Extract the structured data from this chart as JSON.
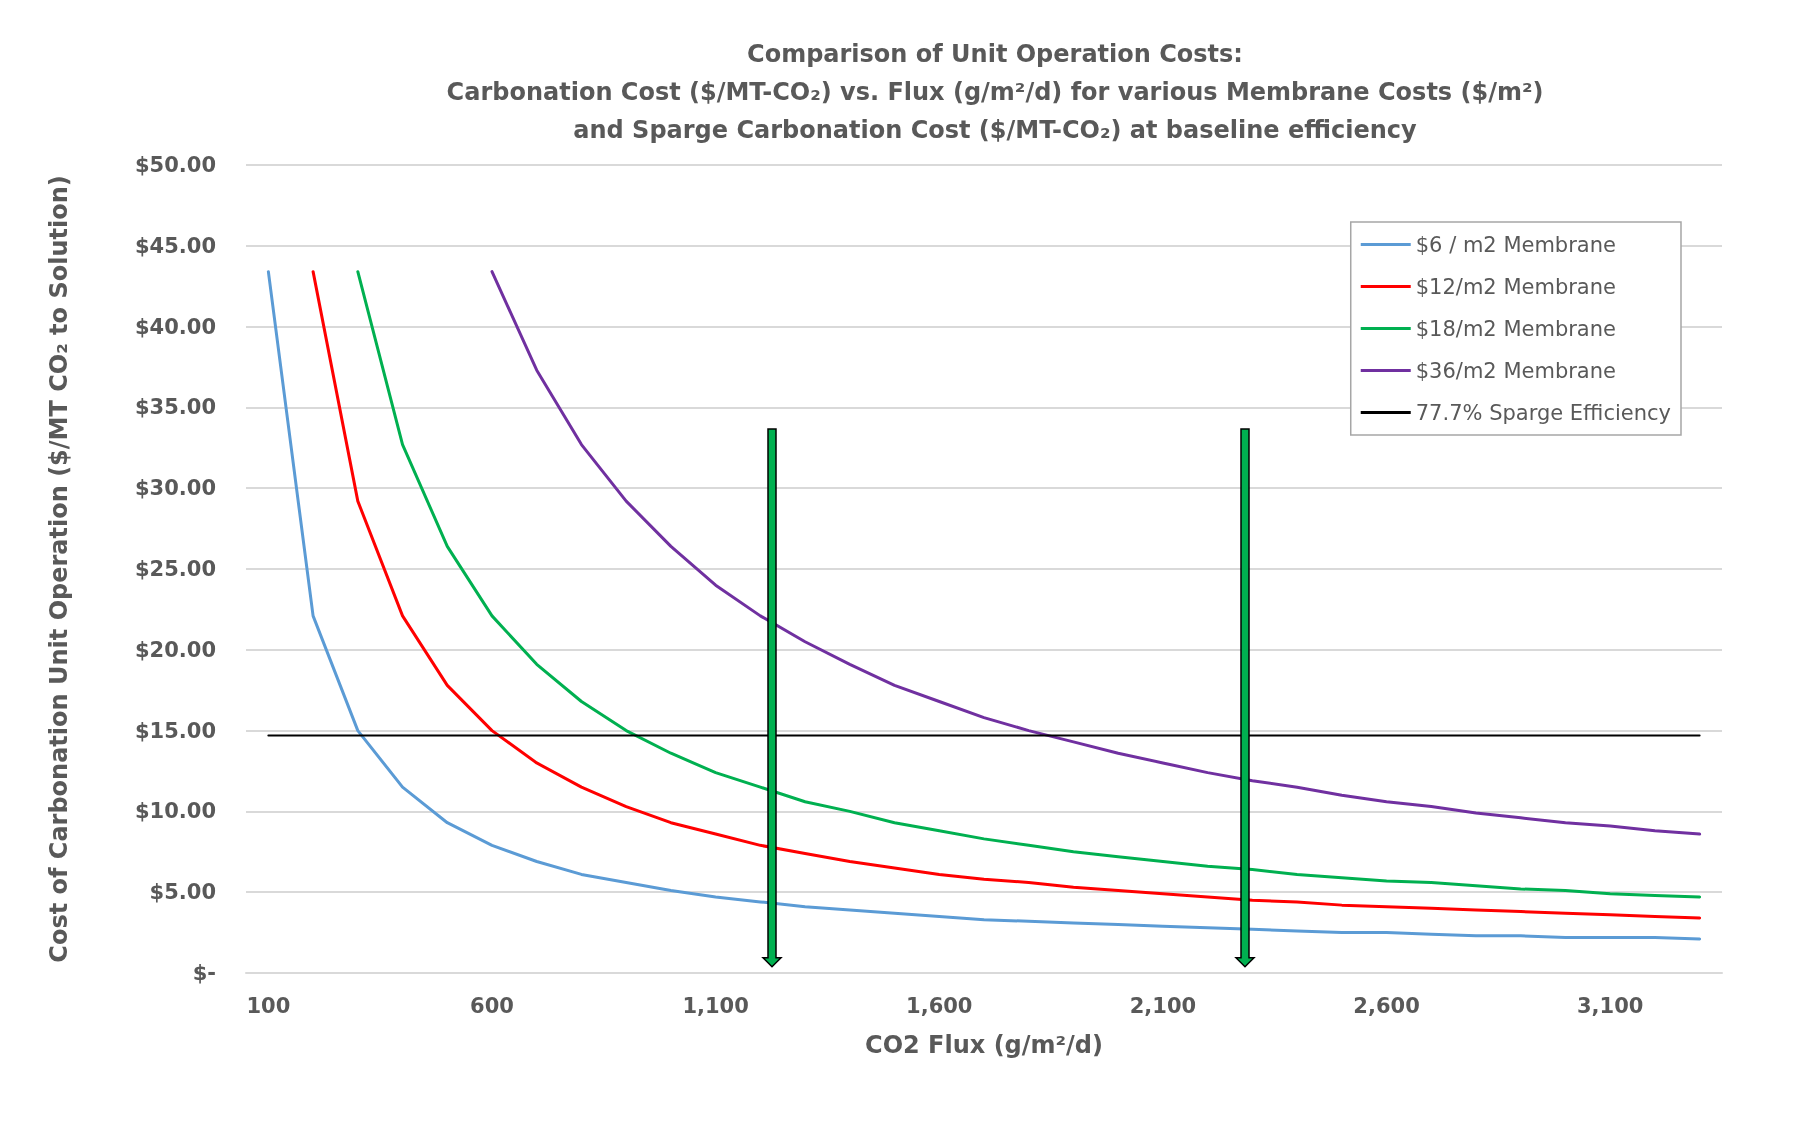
{
  "chart_data": {
    "type": "line",
    "title": "Comparison of Unit Operation Costs:\nCarbonation Cost ($/MT-CO₂) vs. Flux (g/m²/d) for various Membrane Costs ($/m²)\nand Sparge Carbonation Cost ($/MT-CO₂) at baseline efficiency",
    "xlabel": "CO2 Flux (g/m²/d)",
    "ylabel": "Cost of Carbonation Unit Operation ($/MT CO₂ to Solution)",
    "categories": [
      "100",
      null,
      null,
      null,
      null,
      "600",
      null,
      null,
      null,
      null,
      "1,100",
      null,
      null,
      null,
      null,
      "1,600",
      null,
      null,
      null,
      null,
      "2,100",
      null,
      null,
      null,
      null,
      "2,600",
      null,
      null,
      null,
      null,
      "3,100",
      null,
      null
    ],
    "series": [
      {
        "name": "$6 / m2 Membrane",
        "color": "#5b9bd5",
        "values": [
          43.4,
          22.1,
          15.0,
          11.5,
          9.3,
          7.9,
          6.9,
          6.1,
          5.6,
          5.1,
          4.7,
          4.4,
          4.1,
          3.9,
          3.7,
          3.5,
          3.3,
          3.2,
          3.1,
          3.0,
          2.9,
          2.8,
          2.7,
          2.6,
          2.5,
          2.5,
          2.4,
          2.3,
          2.3,
          2.2,
          2.2,
          2.2,
          2.1
        ]
      },
      {
        "name": "$12/m2 Membrane",
        "color": "#ff0000",
        "values": [
          null,
          43.4,
          29.2,
          22.1,
          17.8,
          15.0,
          13.0,
          11.5,
          10.3,
          9.3,
          8.6,
          7.9,
          7.4,
          6.9,
          6.5,
          6.1,
          5.8,
          5.6,
          5.3,
          5.1,
          4.9,
          4.7,
          4.5,
          4.4,
          4.2,
          4.1,
          4.0,
          3.9,
          3.8,
          3.7,
          3.6,
          3.5,
          3.4
        ]
      },
      {
        "name": "$18/m2 Membrane",
        "color": "#00b050",
        "values": [
          null,
          null,
          43.4,
          32.7,
          26.4,
          22.1,
          19.1,
          16.8,
          15.0,
          13.6,
          12.4,
          11.5,
          10.6,
          10.0,
          9.3,
          8.8,
          8.3,
          7.9,
          7.5,
          7.2,
          6.9,
          6.6,
          6.4,
          6.1,
          5.9,
          5.7,
          5.6,
          5.4,
          5.2,
          5.1,
          4.9,
          4.8,
          4.7
        ]
      },
      {
        "name": "$36/m2 Membrane",
        "color": "#7030a0",
        "values": [
          null,
          null,
          null,
          null,
          null,
          43.4,
          37.3,
          32.7,
          29.2,
          26.4,
          24.0,
          22.1,
          20.5,
          19.1,
          17.8,
          16.8,
          15.8,
          15.0,
          14.3,
          13.6,
          13.0,
          12.4,
          11.9,
          11.5,
          11.0,
          10.6,
          10.3,
          9.9,
          9.6,
          9.3,
          9.1,
          8.8,
          8.6
        ]
      },
      {
        "name": "77.7% Sparge Efficiency",
        "color": "#000000",
        "values": [
          14.7,
          14.7,
          14.7,
          14.7,
          14.7,
          14.7,
          14.7,
          14.7,
          14.7,
          14.7,
          14.7,
          14.7,
          14.7,
          14.7,
          14.7,
          14.7,
          14.7,
          14.7,
          14.7,
          14.7,
          14.7,
          14.7,
          14.7,
          14.7,
          14.7,
          14.7,
          14.7,
          14.7,
          14.7,
          14.7,
          14.7,
          14.7,
          14.7
        ]
      }
    ],
    "ylim": [
      0,
      50
    ],
    "yticks": [
      {
        "value": 0,
        "label": "$-"
      },
      {
        "value": 5,
        "label": "$5.00"
      },
      {
        "value": 10,
        "label": "$10.00"
      },
      {
        "value": 15,
        "label": "$15.00"
      },
      {
        "value": 20,
        "label": "$20.00"
      },
      {
        "value": 25,
        "label": "$25.00"
      },
      {
        "value": 30,
        "label": "$30.00"
      },
      {
        "value": 35,
        "label": "$35.00"
      },
      {
        "value": 40,
        "label": "$40.00"
      },
      {
        "value": 45,
        "label": "$45.00"
      },
      {
        "value": 50,
        "label": "$50.00"
      }
    ],
    "grid": "y",
    "legend": "top right",
    "marker": "none"
  }
}
